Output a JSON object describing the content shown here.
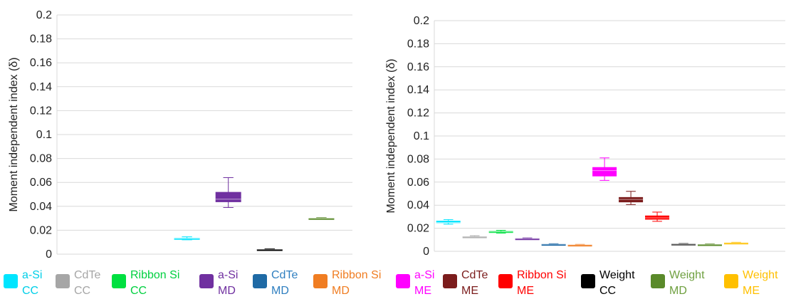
{
  "chart_data": [
    {
      "type": "box",
      "ylabel": "Moment independent index (δ)",
      "ylim": [
        0,
        0.2
      ],
      "yticks": [
        "0",
        "0.02",
        "0.04",
        "0.06",
        "0.08",
        "0.1",
        "0.12",
        "0.14",
        "0.16",
        "0.18",
        "0.2"
      ],
      "grid": true,
      "series": [
        {
          "name": "a-Si CC",
          "color": "#00e5ff",
          "min": 0.012,
          "q1": 0.0125,
          "median": 0.013,
          "q3": 0.0135,
          "max": 0.0145
        },
        {
          "name": "a-Si MD",
          "color": "#7030a0",
          "min": 0.039,
          "q1": 0.0435,
          "median": 0.046,
          "q3": 0.052,
          "max": 0.064
        },
        {
          "name": "Weight CC",
          "color": "#000000",
          "min": 0.0035,
          "q1": 0.0038,
          "median": 0.004,
          "q3": 0.0042,
          "max": 0.0045
        },
        {
          "name": "Weight MD",
          "color": "#5a8a2a",
          "min": 0.0298,
          "q1": 0.0299,
          "median": 0.03,
          "q3": 0.0302,
          "max": 0.0305
        }
      ]
    },
    {
      "type": "box",
      "ylabel": "Moment independent index (δ)",
      "ylim": [
        0,
        0.2
      ],
      "yticks": [
        "0",
        "0.02",
        "0.04",
        "0.06",
        "0.08",
        "0.1",
        "0.12",
        "0.14",
        "0.16",
        "0.18",
        "0.2"
      ],
      "grid": true,
      "series": [
        {
          "name": "a-Si CC",
          "color": "#00e5ff",
          "min": 0.0235,
          "q1": 0.0245,
          "median": 0.025,
          "q3": 0.0265,
          "max": 0.0275
        },
        {
          "name": "CdTe CC",
          "color": "#a6a6a6",
          "min": 0.0118,
          "q1": 0.012,
          "median": 0.0125,
          "q3": 0.013,
          "max": 0.0135
        },
        {
          "name": "Ribbon Si CC",
          "color": "#00e040",
          "min": 0.0158,
          "q1": 0.016,
          "median": 0.0168,
          "q3": 0.0175,
          "max": 0.0182
        },
        {
          "name": "a-Si MD",
          "color": "#7030a0",
          "min": 0.0105,
          "q1": 0.0108,
          "median": 0.011,
          "q3": 0.0113,
          "max": 0.0116
        },
        {
          "name": "CdTe MD",
          "color": "#1f6aa5",
          "min": 0.0058,
          "q1": 0.006,
          "median": 0.0062,
          "q3": 0.0064,
          "max": 0.0066
        },
        {
          "name": "Ribbon Si MD",
          "color": "#f07d22",
          "min": 0.0052,
          "q1": 0.0054,
          "median": 0.0056,
          "q3": 0.0058,
          "max": 0.006
        },
        {
          "name": "a-Si ME",
          "color": "#ff00ff",
          "min": 0.0615,
          "q1": 0.065,
          "median": 0.07,
          "q3": 0.073,
          "max": 0.081
        },
        {
          "name": "CdTe ME",
          "color": "#7b1c1c",
          "min": 0.0405,
          "q1": 0.0425,
          "median": 0.045,
          "q3": 0.047,
          "max": 0.052
        },
        {
          "name": "Ribbon Si ME",
          "color": "#ff0000",
          "min": 0.026,
          "q1": 0.0275,
          "median": 0.029,
          "q3": 0.031,
          "max": 0.034
        },
        {
          "name": "Weight CC",
          "color": "#4a4a4a",
          "min": 0.0058,
          "q1": 0.006,
          "median": 0.0063,
          "q3": 0.0066,
          "max": 0.0068
        },
        {
          "name": "Weight MD",
          "color": "#5a8a2a",
          "min": 0.0055,
          "q1": 0.0057,
          "median": 0.006,
          "q3": 0.0062,
          "max": 0.0064
        },
        {
          "name": "Weight ME",
          "color": "#ffc000",
          "min": 0.0068,
          "q1": 0.007,
          "median": 0.0073,
          "q3": 0.0076,
          "max": 0.0078
        }
      ]
    }
  ],
  "legend": {
    "items": [
      {
        "line1": "a-Si",
        "line2": "CC",
        "color": "#00e5ff",
        "text_color": "#00cfe8"
      },
      {
        "line1": "CdTe",
        "line2": "CC",
        "color": "#a6a6a6",
        "text_color": "#a6a6a6"
      },
      {
        "line1": "Ribbon Si",
        "line2": "CC",
        "color": "#00e040",
        "text_color": "#00d040"
      },
      {
        "line1": "a-Si",
        "line2": "MD",
        "color": "#7030a0",
        "text_color": "#7030a0"
      },
      {
        "line1": "CdTe",
        "line2": "MD",
        "color": "#1f6aa5",
        "text_color": "#2f7fc0"
      },
      {
        "line1": "Ribbon Si",
        "line2": "MD",
        "color": "#f07d22",
        "text_color": "#f07d22"
      },
      {
        "line1": "a-Si",
        "line2": "ME",
        "color": "#ff00ff",
        "text_color": "#ff00ff"
      },
      {
        "line1": "CdTe",
        "line2": "ME",
        "color": "#7b1c1c",
        "text_color": "#7b1c1c"
      },
      {
        "line1": "Ribbon Si",
        "line2": "ME",
        "color": "#ff0000",
        "text_color": "#ff0000"
      },
      {
        "line1": "Weight",
        "line2": "CC",
        "color": "#000000",
        "text_color": "#000000"
      },
      {
        "line1": "Weight",
        "line2": "MD",
        "color": "#5a8a2a",
        "text_color": "#6fa040"
      },
      {
        "line1": "Weight",
        "line2": "ME",
        "color": "#ffc000",
        "text_color": "#ffc000"
      }
    ]
  }
}
